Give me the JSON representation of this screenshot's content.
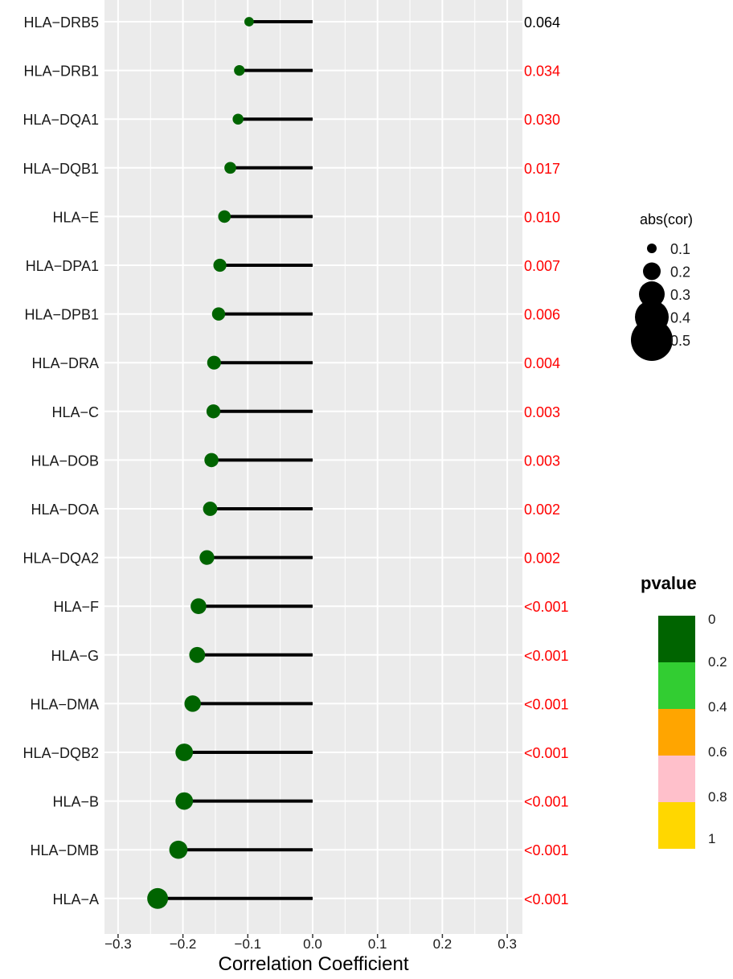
{
  "chart_data": {
    "type": "lollipop",
    "xlabel": "Correlation Coefficient",
    "xlim": [
      -0.31,
      0.31
    ],
    "xticks": [
      -0.3,
      -0.2,
      -0.1,
      0.0,
      0.1,
      0.2,
      0.3
    ],
    "xtick_labels": [
      "−0.3",
      "−0.2",
      "−0.1",
      "0.0",
      "0.1",
      "0.2",
      "0.3"
    ],
    "grid": true,
    "significance_color": "#ff0000",
    "nonsignificant_color": "#000000",
    "rows": [
      {
        "gene": "HLA−DRB5",
        "cor": -0.098,
        "pvalue": 0.064,
        "pvalue_text": "0.064",
        "significant": false
      },
      {
        "gene": "HLA−DRB1",
        "cor": -0.113,
        "pvalue": 0.034,
        "pvalue_text": "0.034",
        "significant": true
      },
      {
        "gene": "HLA−DQA1",
        "cor": -0.115,
        "pvalue": 0.03,
        "pvalue_text": "0.030",
        "significant": true
      },
      {
        "gene": "HLA−DQB1",
        "cor": -0.127,
        "pvalue": 0.017,
        "pvalue_text": "0.017",
        "significant": true
      },
      {
        "gene": "HLA−E",
        "cor": -0.136,
        "pvalue": 0.01,
        "pvalue_text": "0.010",
        "significant": true
      },
      {
        "gene": "HLA−DPA1",
        "cor": -0.143,
        "pvalue": 0.007,
        "pvalue_text": "0.007",
        "significant": true
      },
      {
        "gene": "HLA−DPB1",
        "cor": -0.145,
        "pvalue": 0.006,
        "pvalue_text": "0.006",
        "significant": true
      },
      {
        "gene": "HLA−DRA",
        "cor": -0.152,
        "pvalue": 0.004,
        "pvalue_text": "0.004",
        "significant": true
      },
      {
        "gene": "HLA−C",
        "cor": -0.153,
        "pvalue": 0.003,
        "pvalue_text": "0.003",
        "significant": true
      },
      {
        "gene": "HLA−DOB",
        "cor": -0.156,
        "pvalue": 0.003,
        "pvalue_text": "0.003",
        "significant": true
      },
      {
        "gene": "HLA−DOA",
        "cor": -0.158,
        "pvalue": 0.002,
        "pvalue_text": "0.002",
        "significant": true
      },
      {
        "gene": "HLA−DQA2",
        "cor": -0.163,
        "pvalue": 0.002,
        "pvalue_text": "0.002",
        "significant": true
      },
      {
        "gene": "HLA−F",
        "cor": -0.176,
        "pvalue": 0.0008,
        "pvalue_text": "<0.001",
        "significant": true
      },
      {
        "gene": "HLA−G",
        "cor": -0.178,
        "pvalue": 0.0008,
        "pvalue_text": "<0.001",
        "significant": true
      },
      {
        "gene": "HLA−DMA",
        "cor": -0.185,
        "pvalue": 0.0005,
        "pvalue_text": "<0.001",
        "significant": true
      },
      {
        "gene": "HLA−DQB2",
        "cor": -0.198,
        "pvalue": 0.0003,
        "pvalue_text": "<0.001",
        "significant": true
      },
      {
        "gene": "HLA−B",
        "cor": -0.198,
        "pvalue": 0.0003,
        "pvalue_text": "<0.001",
        "significant": true
      },
      {
        "gene": "HLA−DMB",
        "cor": -0.207,
        "pvalue": 0.0001,
        "pvalue_text": "<0.001",
        "significant": true
      },
      {
        "gene": "HLA−A",
        "cor": -0.239,
        "pvalue": 1e-05,
        "pvalue_text": "<0.001",
        "significant": true
      }
    ],
    "size_legend": {
      "title": "abs(cor)",
      "values": [
        0.1,
        0.2,
        0.3,
        0.4,
        0.5
      ],
      "labels": [
        "0.1",
        "0.2",
        "0.3",
        "0.4",
        "0.5"
      ]
    },
    "color_legend": {
      "title": "pvalue",
      "labels": [
        "0",
        "0.2",
        "0.4",
        "0.6",
        "0.8",
        "1"
      ],
      "bins": [
        {
          "from": 0.0,
          "to": 0.2,
          "color": "#006400"
        },
        {
          "from": 0.2,
          "to": 0.4,
          "color": "#32cd32"
        },
        {
          "from": 0.4,
          "to": 0.6,
          "color": "#ffa500"
        },
        {
          "from": 0.6,
          "to": 0.8,
          "color": "#ffc0cb"
        },
        {
          "from": 0.8,
          "to": 1.0,
          "color": "#ffd700"
        }
      ]
    },
    "colors": {
      "panel_bg": "#ebebeb",
      "gridline": "#ffffff",
      "stem": "#000000",
      "point": "#006400"
    }
  }
}
